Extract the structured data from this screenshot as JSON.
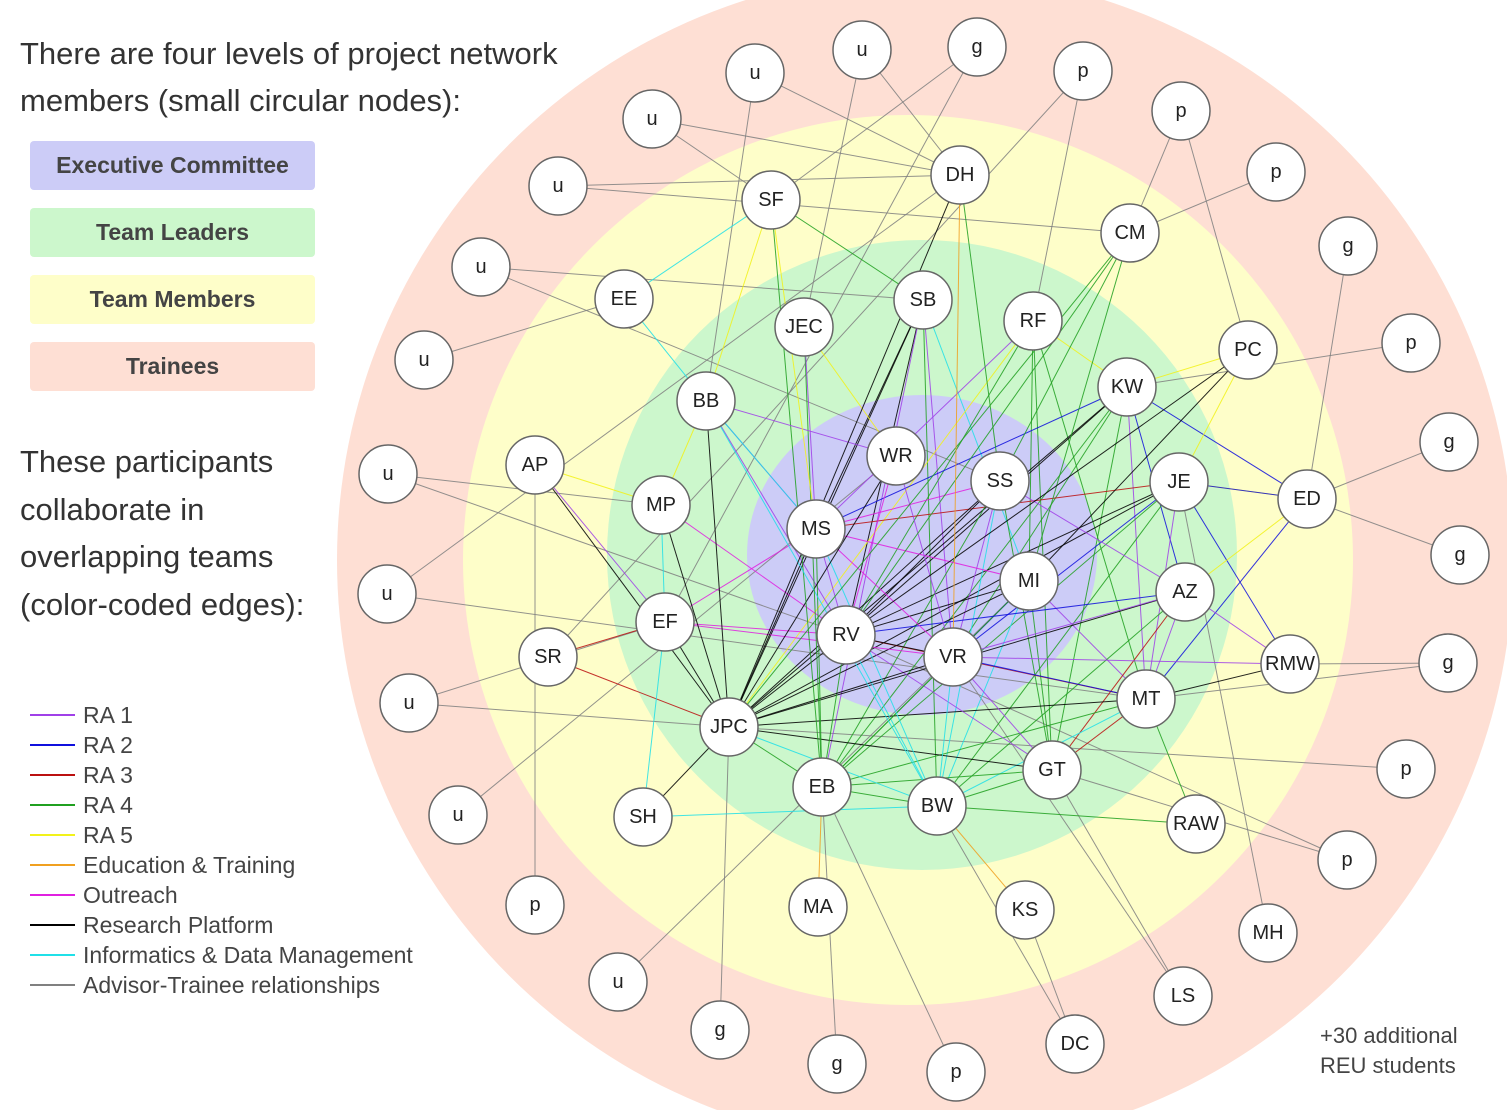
{
  "intro_text": "There are four levels of project network members (small circular nodes):",
  "levels": [
    {
      "label": "Executive Committee",
      "color": "#ccccf7"
    },
    {
      "label": "Team Leaders",
      "color": "#ccf7cc"
    },
    {
      "label": "Team Members",
      "color": "#fefec9"
    },
    {
      "label": "Trainees",
      "color": "#fedfd4"
    }
  ],
  "teams_text": "These participants collaborate in overlapping teams (color-coded edges):",
  "legend": [
    {
      "label": "RA 1",
      "color": "#a040e8"
    },
    {
      "label": "RA 2",
      "color": "#1010dd"
    },
    {
      "label": "RA 3",
      "color": "#bb1010"
    },
    {
      "label": "RA 4",
      "color": "#20a020"
    },
    {
      "label": "RA 5",
      "color": "#f2f21a"
    },
    {
      "label": "Education & Training",
      "color": "#f0a020"
    },
    {
      "label": "Outreach",
      "color": "#e020e0"
    },
    {
      "label": "Research Platform",
      "color": "#000000"
    },
    {
      "label": "Informatics & Data Management",
      "color": "#20e0e8"
    },
    {
      "label": "Advisor-Trainee relationships",
      "color": "#808080"
    }
  ],
  "footnote": {
    "line1": "+30 additional",
    "line2": "REU students"
  },
  "nodes": [
    "u",
    "g",
    "u",
    "p",
    "u",
    "DH",
    "p",
    "u",
    "SF",
    "CM",
    "p",
    "EE",
    "g",
    "u",
    "SB",
    "RF",
    "JEC",
    "PC",
    "p",
    "u",
    "BB",
    "KW",
    "g",
    "WR",
    "SS",
    "JE",
    "AP",
    "MP",
    "ED",
    "u",
    "MS",
    "g",
    "MI",
    "AZ",
    "u",
    "EF",
    "RV",
    "VR",
    "RMW",
    "SR",
    "g",
    "MT",
    "u",
    "JPC",
    "p",
    "GT",
    "EB",
    "BW",
    "u",
    "SH",
    "RAW",
    "p",
    "MA",
    "KS",
    "p",
    "MH",
    "u",
    "g",
    "LS",
    "DC",
    "g",
    "p"
  ]
}
